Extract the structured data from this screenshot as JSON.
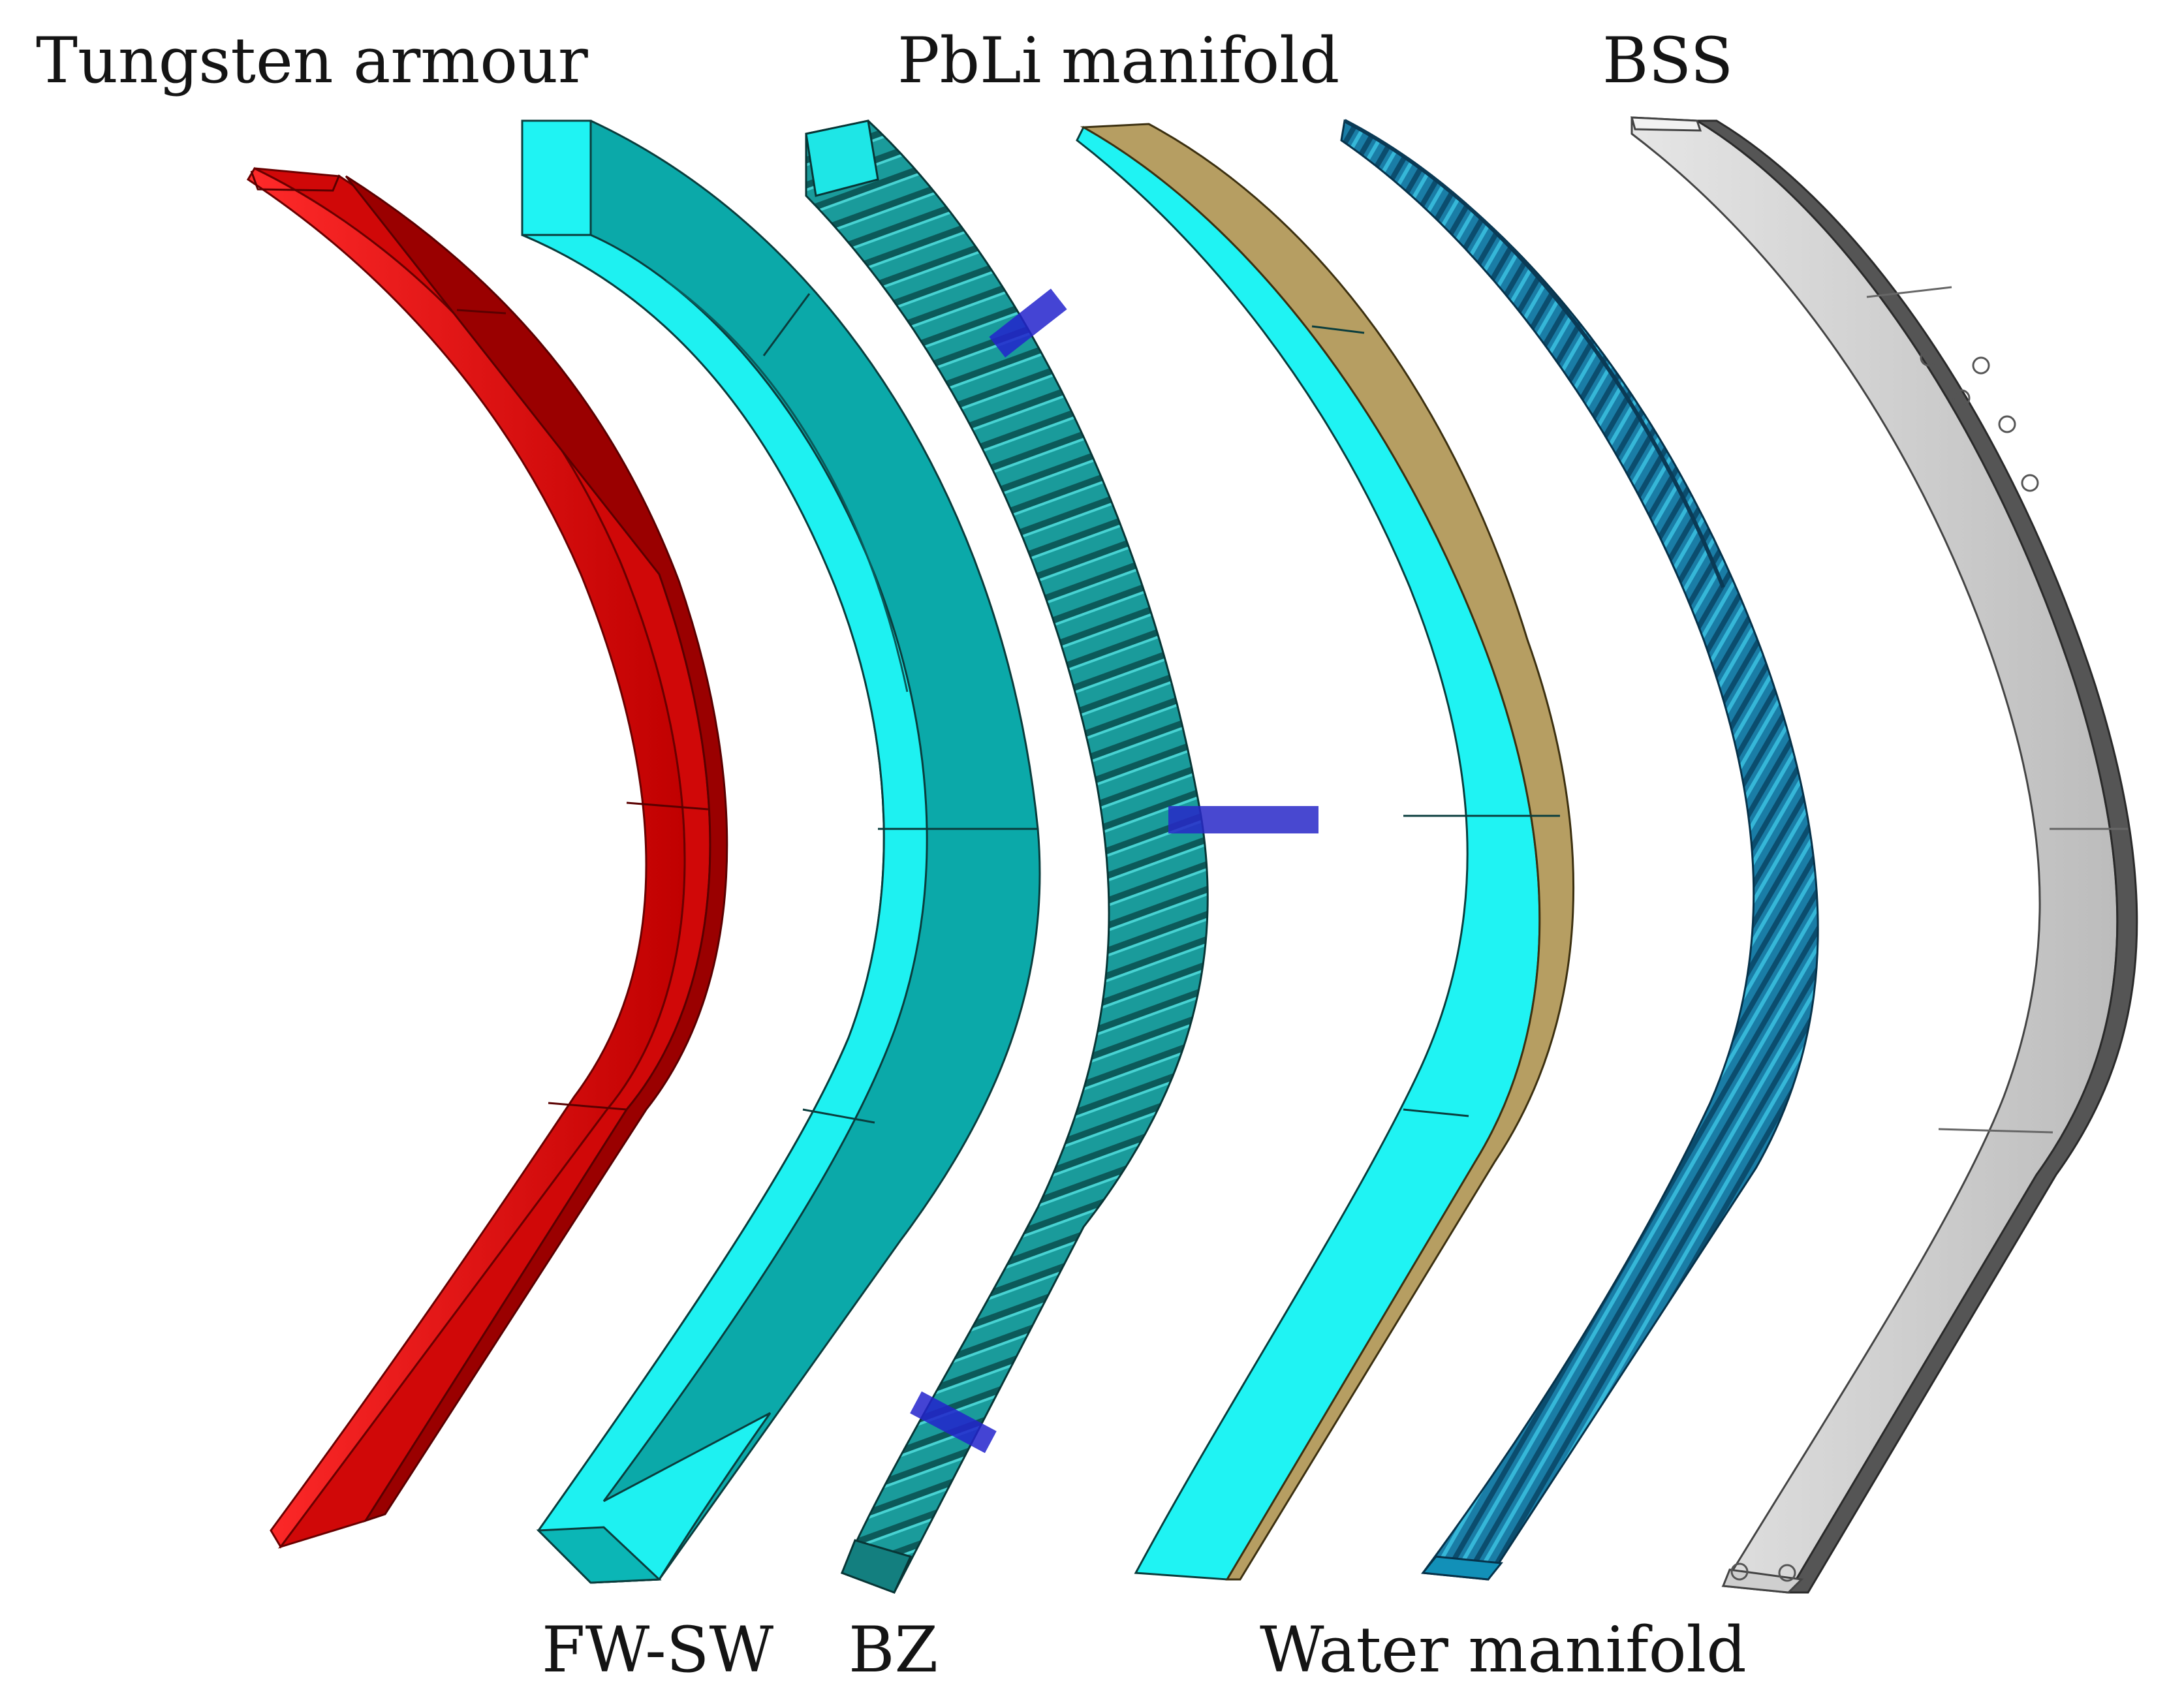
{
  "labels": {
    "tungsten": "Tungsten armour",
    "pbli": "PbLi manifold",
    "bss": "BSS",
    "fwsw": "FW-SW",
    "bz": "BZ",
    "water": "Water manifold"
  },
  "colors": {
    "tungsten": "#e01010",
    "tungsten_dark": "#a80000",
    "fwsw_light": "#19f0f0",
    "fwsw_dark": "#0aa6a6",
    "bz_teal": "#1b9a9a",
    "bz_blue": "#2222cc",
    "pbli_cyan": "#1ef2f2",
    "pbli_gold": "#b8a060",
    "water_blue": "#1678a0",
    "water_light": "#2ab4d4",
    "bss_grey": "#d2d2d2",
    "bss_dark": "#6a6a6a"
  }
}
